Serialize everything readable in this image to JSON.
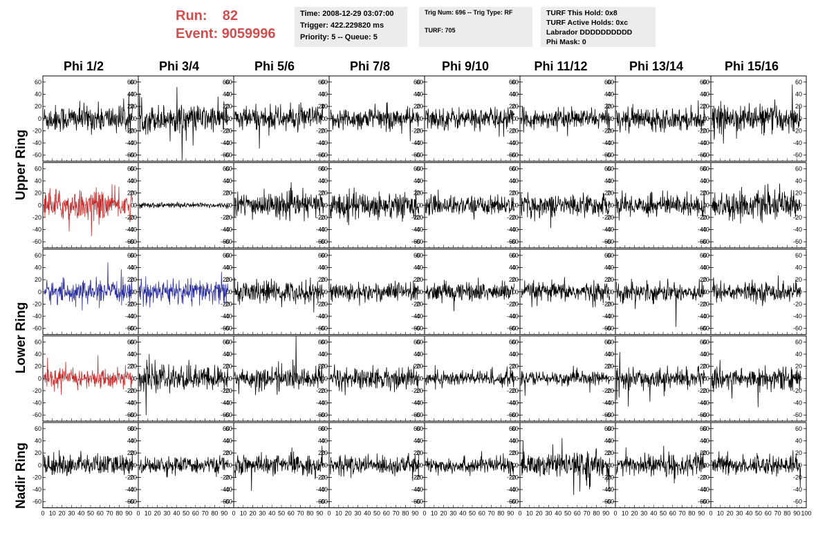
{
  "header": {
    "run_label": "Run:",
    "run_value": "82",
    "event_label": "Event:",
    "event_value": "9059996"
  },
  "info_boxes": {
    "time": {
      "lines": [
        "Time: 2008-12-29 03:07:00",
        "Trigger: 422.229820 ms",
        "Priority: 5 -- Queue: 5"
      ]
    },
    "trig": {
      "line1": "Trig Num: 696 -- Trig Type: RF",
      "line2": "TURF: 705"
    },
    "turf": {
      "lines": [
        "TURF This Hold: 0x8",
        "TURF Active Holds: 0xc",
        "Labrador DDDDDDDDDD",
        "Phi Mask: 0"
      ]
    }
  },
  "columns": [
    "Phi 1/2",
    "Phi 3/4",
    "Phi 5/6",
    "Phi 7/8",
    "Phi 9/10",
    "Phi 11/12",
    "Phi 13/14",
    "Phi 15/16"
  ],
  "row_labels": {
    "upper": "Upper Ring",
    "lower": "Lower Ring",
    "nadir": "Nadir Ring"
  },
  "colors": {
    "default_trace": "#000000",
    "red_trace": "#c62d2d",
    "blue_trace": "#2b2f9c",
    "run_text": "#cf4f4f",
    "info_bg": "#ececec"
  },
  "chart_data": {
    "type": "line",
    "xlim": [
      0,
      100
    ],
    "ylim": [
      -70,
      70
    ],
    "x_ticks": [
      0,
      10,
      20,
      30,
      40,
      50,
      60,
      70,
      80,
      90,
      100
    ],
    "x_tick_labels_per_panel": [
      "0",
      "10",
      "20",
      "30",
      "40",
      "50",
      "60",
      "70",
      "80",
      "90",
      "100"
    ],
    "y_ticks": [
      -60,
      -40,
      -20,
      0,
      20,
      40,
      60
    ],
    "grid": false,
    "rows": 5,
    "cols": 8,
    "amplitude_rows": [
      [
        20,
        20,
        18,
        16,
        16,
        14,
        16,
        20
      ],
      [
        22,
        4,
        18,
        20,
        14,
        16,
        16,
        20
      ],
      [
        16,
        18,
        16,
        14,
        14,
        14,
        14,
        14
      ],
      [
        14,
        18,
        16,
        16,
        12,
        10,
        14,
        16
      ],
      [
        16,
        12,
        14,
        14,
        12,
        18,
        16,
        14
      ]
    ],
    "color_rows": [
      [
        "black",
        "black",
        "black",
        "black",
        "black",
        "black",
        "black",
        "black"
      ],
      [
        "red",
        "black",
        "black",
        "black",
        "black",
        "black",
        "black",
        "black"
      ],
      [
        "blue",
        "blue",
        "black",
        "black",
        "black",
        "black",
        "black",
        "black"
      ],
      [
        "red",
        "black",
        "black",
        "black",
        "black",
        "black",
        "black",
        "black"
      ],
      [
        "black",
        "black",
        "black",
        "black",
        "black",
        "black",
        "black",
        "black"
      ]
    ]
  }
}
